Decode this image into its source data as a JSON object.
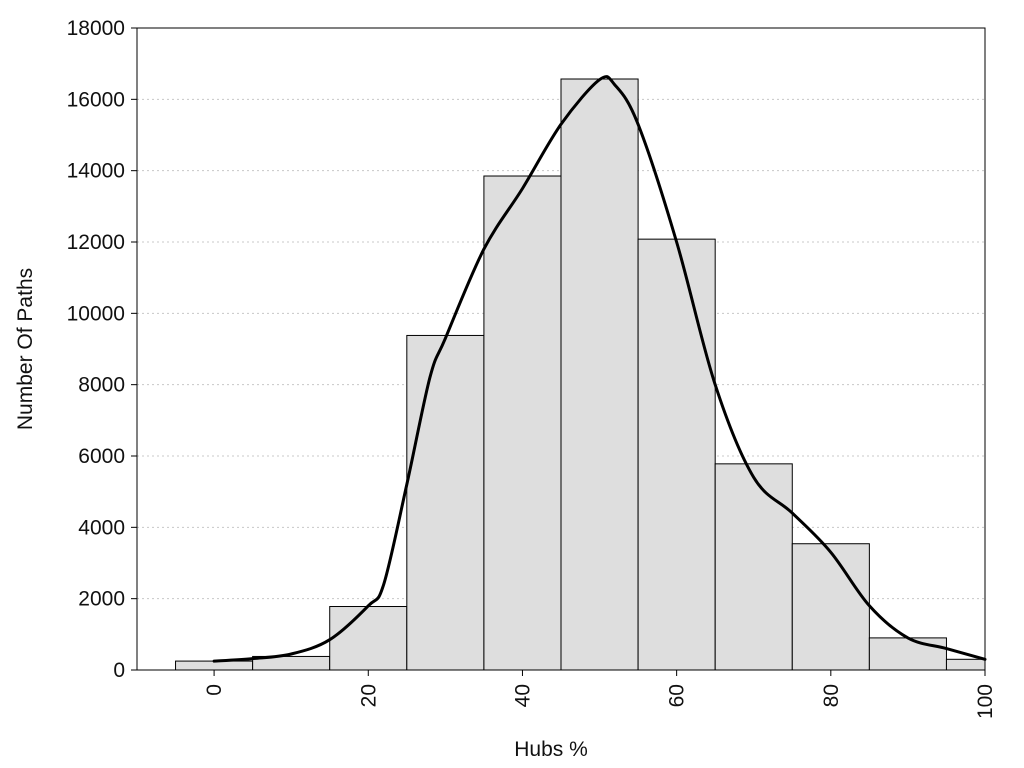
{
  "chart_data": {
    "type": "bar",
    "xlabel": "Hubs %",
    "ylabel": "Number Of Paths",
    "xlim": [
      -10,
      100
    ],
    "ylim": [
      0,
      18000
    ],
    "x_ticks": [
      0,
      20,
      40,
      60,
      80,
      100
    ],
    "y_ticks": [
      0,
      2000,
      4000,
      6000,
      8000,
      10000,
      12000,
      14000,
      16000,
      18000
    ],
    "grid": "horizontal dotted",
    "bin_width": 10,
    "bins": [
      0,
      10,
      20,
      30,
      40,
      50,
      60,
      70,
      80,
      90,
      100
    ],
    "values": [
      250,
      380,
      1780,
      9380,
      13850,
      16570,
      12080,
      5780,
      3540,
      900,
      300
    ],
    "density_curve": {
      "x": [
        0,
        5,
        10,
        15,
        20,
        22,
        25,
        28,
        30,
        35,
        40,
        45,
        50,
        52,
        55,
        60,
        65,
        70,
        75,
        80,
        85,
        90,
        95,
        100
      ],
      "y": [
        250,
        320,
        450,
        850,
        1800,
        2400,
        5200,
        8200,
        9300,
        11800,
        13500,
        15300,
        16550,
        16400,
        15300,
        12000,
        8000,
        5400,
        4400,
        3300,
        1800,
        900,
        600,
        300
      ]
    },
    "colors": {
      "bar_fill": "#dedede",
      "bar_stroke": "#000000",
      "curve": "#000000",
      "grid": "#c8c8c8"
    }
  }
}
